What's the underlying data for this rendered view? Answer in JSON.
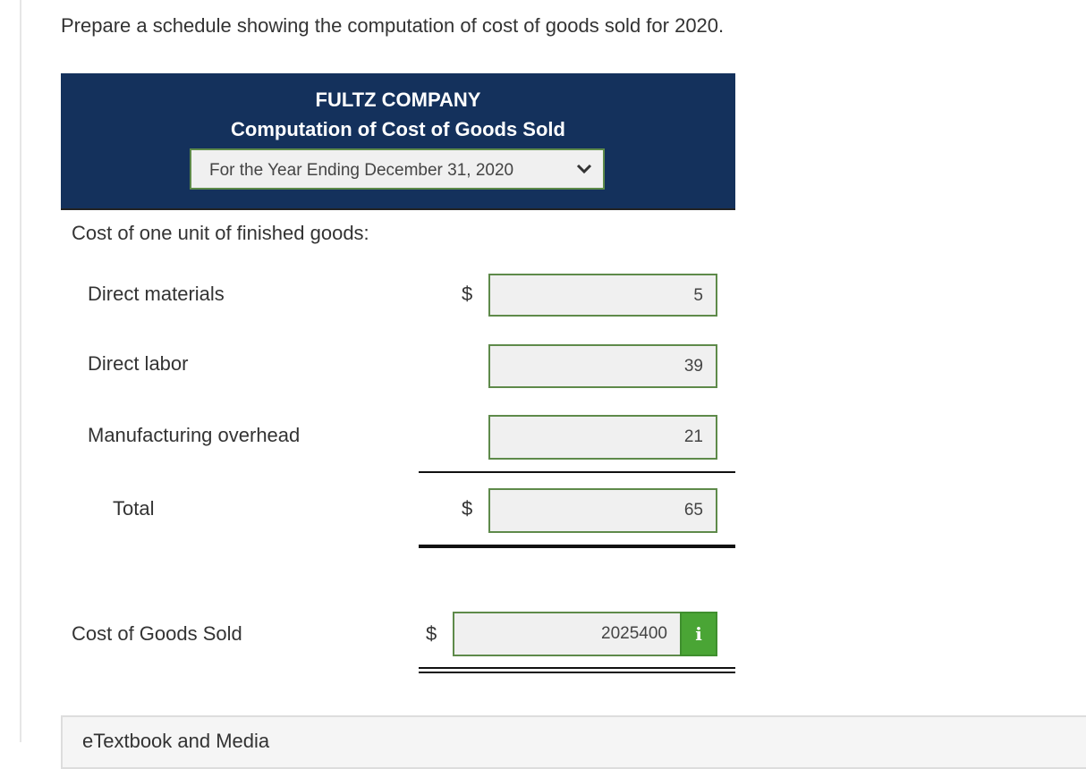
{
  "instruction": "Prepare a schedule showing the computation of cost of goods sold for 2020.",
  "header": {
    "company": "FULTZ COMPANY",
    "statement": "Computation of Cost of Goods Sold",
    "period_selected": "For the Year Ending December 31, 2020"
  },
  "section_label": "Cost of one unit of finished goods:",
  "rows": {
    "direct_materials": {
      "label": "Direct materials",
      "currency": "$",
      "value": "5"
    },
    "direct_labor": {
      "label": "Direct labor",
      "value": "39"
    },
    "manufacturing_overhead": {
      "label": "Manufacturing overhead",
      "value": "21"
    },
    "total": {
      "label": "Total",
      "currency": "$",
      "value": "65"
    },
    "cogs": {
      "label": "Cost of Goods Sold",
      "currency": "$",
      "value": "2025400"
    }
  },
  "info_icon": "info-icon",
  "media_panel": {
    "label": "eTextbook and Media"
  },
  "colors": {
    "header_bg": "#14315c",
    "input_border": "#5e8a4a",
    "input_bg": "#f0f0f0",
    "info_button": "#4aa535"
  }
}
